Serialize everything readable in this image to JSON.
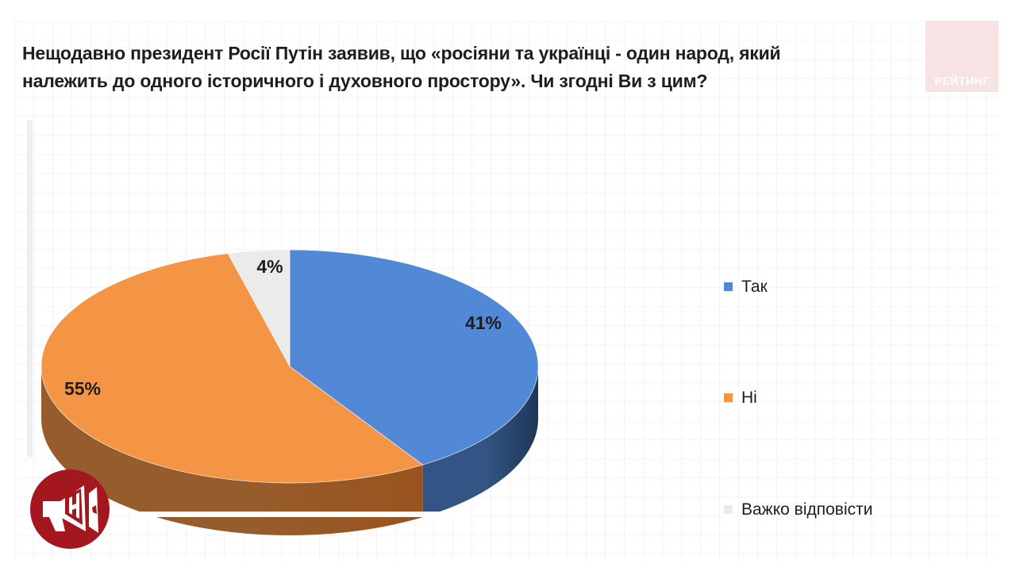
{
  "title_line1": "Нещодавно президент Росії Путін заявив, що «росіяни та українці - один народ, який",
  "title_line2": "належить до одного історичного і духовного простору». Чи згодні Ви з цим?",
  "brand": {
    "label": "РЕЙТИНГ"
  },
  "logo": {
    "icon": "megaphone-icon",
    "color": "#a4171f"
  },
  "chart_data": {
    "type": "pie",
    "style": "3d",
    "categories": [
      "Так",
      "Ні",
      "Важко відповісти"
    ],
    "values": [
      41,
      55,
      4
    ],
    "labels": [
      "41%",
      "55%",
      "4%"
    ],
    "colors": [
      "#5289d6",
      "#f39545",
      "#ebebeb"
    ],
    "side_colors": [
      "#1f3657",
      "#9a5320",
      "#b8b8b8"
    ],
    "legend": "right"
  }
}
